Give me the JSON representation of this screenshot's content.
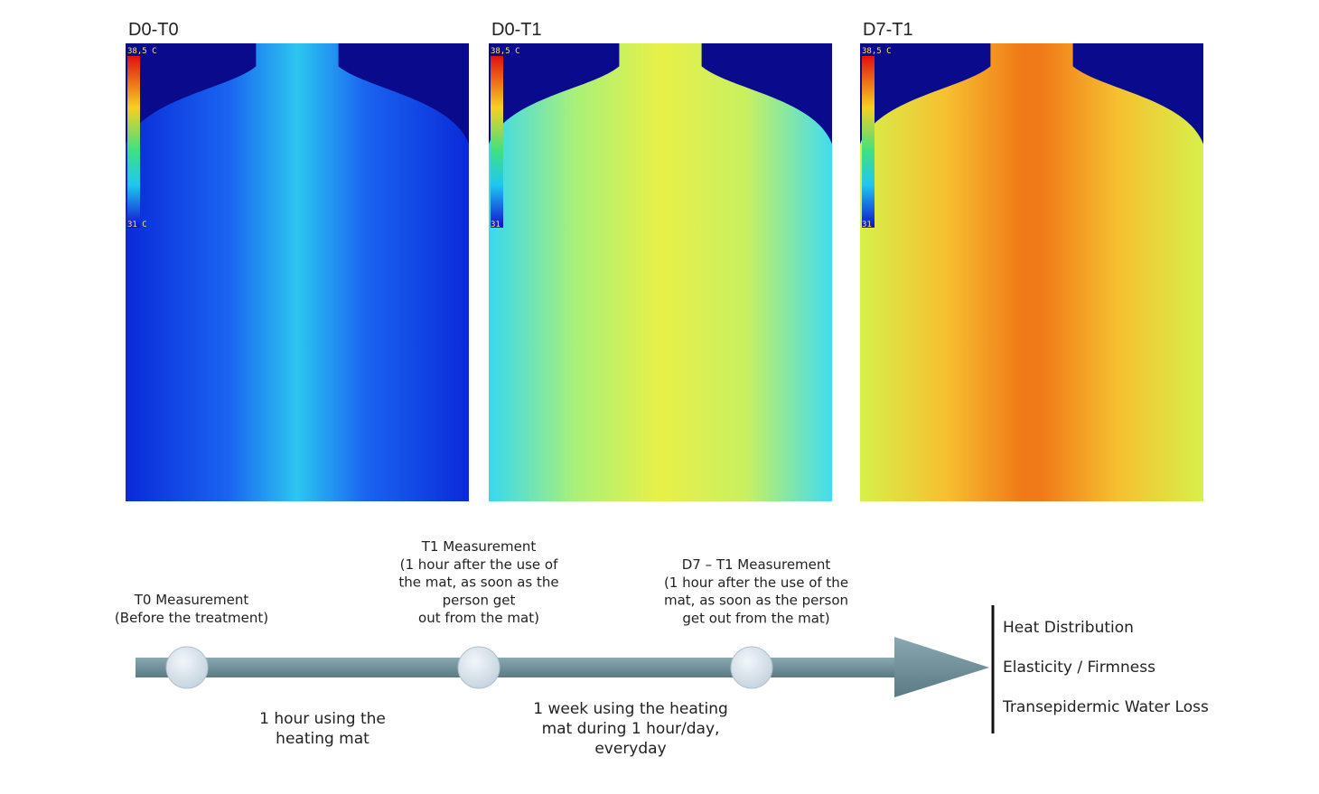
{
  "panels": [
    {
      "title": "D0-T0",
      "scale_max": "38,5 C",
      "scale_min": "31 C"
    },
    {
      "title": "D0-T1",
      "scale_max": "38,5 C",
      "scale_min": "31"
    },
    {
      "title": "D7-T1",
      "scale_max": "38,5 C",
      "scale_min": "31"
    }
  ],
  "timeline": {
    "measurements": [
      [
        "T0 Measurement",
        "(Before the treatment)"
      ],
      [
        "T1 Measurement",
        "(1 hour after  the use of",
        "the mat, as soon as the",
        "person get",
        "out from the mat)"
      ],
      [
        "D7 – T1 Measurement",
        "(1 hour after  the use of the",
        "mat, as soon as the person",
        "get out from the mat)"
      ]
    ],
    "intervals": [
      [
        "1 hour using the",
        "heating mat"
      ],
      [
        "1 week using the heating",
        "mat during 1 hour/day,",
        "everyday"
      ]
    ],
    "outcomes": [
      "Heat Distribution",
      "Elasticity / Firmness",
      "Transepidermic Water Loss"
    ]
  }
}
